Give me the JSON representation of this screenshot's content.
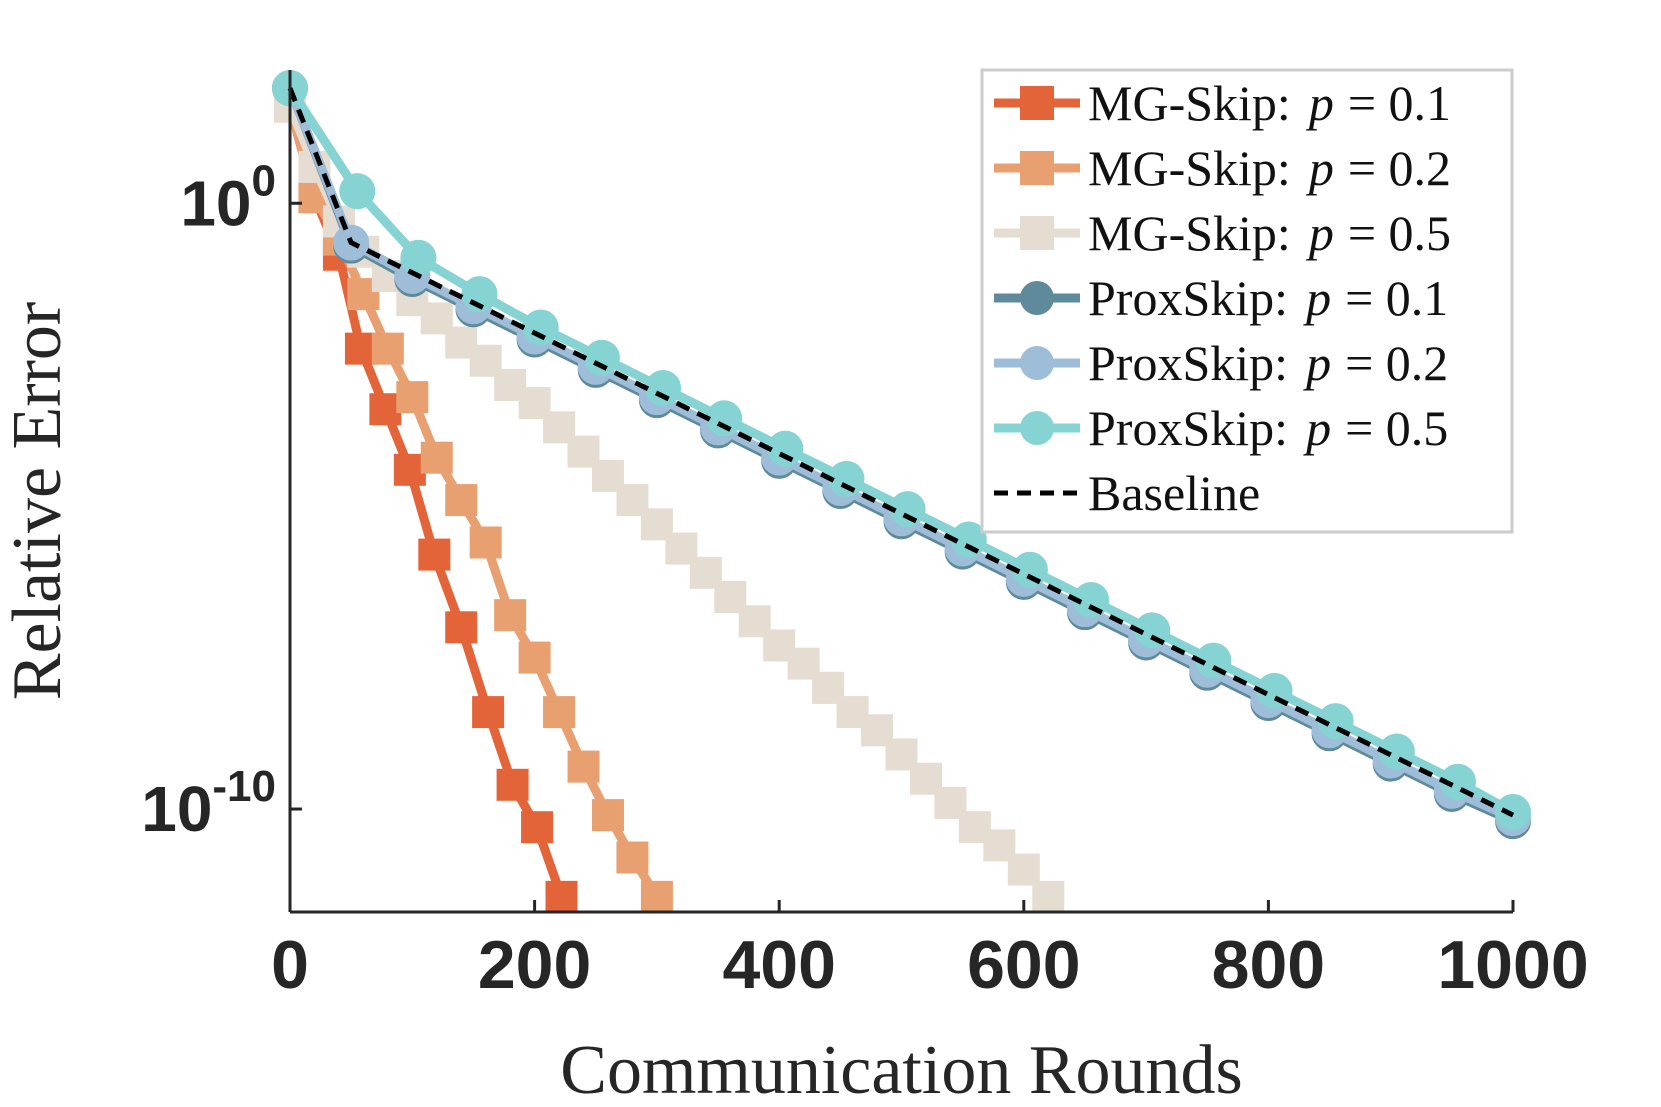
{
  "chart_data": {
    "type": "line",
    "title": "",
    "xlabel": "Communication Rounds",
    "ylabel": "Relative Error",
    "y_scale": "log10",
    "xlim": [
      0,
      1000
    ],
    "ylim_exponent": [
      -11.7,
      2.2
    ],
    "x_ticks": [
      "0",
      "200",
      "400",
      "600",
      "800",
      "1000"
    ],
    "y_ticks": [
      {
        "base": "10",
        "exp": "0",
        "value_exponent": 0
      },
      {
        "base": "10",
        "exp": "-10",
        "value_exponent": -10
      }
    ],
    "grid": false,
    "legend_position": "top-right",
    "series": [
      {
        "name": "MG-Skip:",
        "param": "p",
        "param_value": "= 0.1",
        "color": "#e4643a",
        "marker": "square",
        "x": [
          0,
          20,
          40,
          58,
          78,
          98,
          118,
          140,
          162,
          182,
          202,
          222
        ],
        "log_y": [
          1.6,
          0.1,
          -0.85,
          -2.4,
          -3.4,
          -4.4,
          -5.8,
          -7.0,
          -8.4,
          -9.6,
          -10.3,
          -11.45
        ]
      },
      {
        "name": "MG-Skip:",
        "param": "p",
        "param_value": "= 0.2",
        "color": "#e8a070",
        "marker": "square",
        "x": [
          0,
          20,
          40,
          60,
          80,
          100,
          120,
          140,
          160,
          180,
          200,
          220,
          240,
          260,
          280,
          300
        ],
        "log_y": [
          1.6,
          0.1,
          -0.6,
          -1.5,
          -2.4,
          -3.2,
          -4.2,
          -4.9,
          -5.6,
          -6.8,
          -7.5,
          -8.4,
          -9.3,
          -10.1,
          -10.8,
          -11.45
        ]
      },
      {
        "name": "MG-Skip:",
        "param": "p",
        "param_value": "= 0.5",
        "color": "#e6ddd2",
        "marker": "square",
        "x": [
          0,
          20,
          40,
          60,
          80,
          100,
          120,
          140,
          160,
          180,
          200,
          220,
          240,
          260,
          280,
          300,
          320,
          340,
          360,
          380,
          400,
          420,
          440,
          460,
          480,
          500,
          520,
          540,
          560,
          580,
          600,
          620
        ],
        "log_y": [
          1.6,
          0.6,
          -0.3,
          -0.8,
          -1.2,
          -1.6,
          -1.9,
          -2.3,
          -2.6,
          -3.0,
          -3.3,
          -3.7,
          -4.1,
          -4.5,
          -4.9,
          -5.3,
          -5.7,
          -6.1,
          -6.5,
          -6.9,
          -7.3,
          -7.6,
          -8.0,
          -8.4,
          -8.7,
          -9.1,
          -9.5,
          -9.9,
          -10.3,
          -10.6,
          -11.0,
          -11.45
        ]
      },
      {
        "name": "ProxSkip:",
        "param": "p",
        "param_value": "= 0.1",
        "color": "#5f8a9c",
        "marker": "circle",
        "x": [
          0,
          50,
          100,
          150,
          200,
          250,
          300,
          350,
          400,
          450,
          500,
          550,
          600,
          650,
          700,
          750,
          800,
          850,
          900,
          950,
          1000
        ],
        "log_y": [
          1.9,
          -0.7,
          -1.25,
          -1.75,
          -2.25,
          -2.75,
          -3.25,
          -3.75,
          -4.25,
          -4.75,
          -5.25,
          -5.75,
          -6.25,
          -6.75,
          -7.25,
          -7.75,
          -8.25,
          -8.75,
          -9.25,
          -9.75,
          -10.2
        ]
      },
      {
        "name": "ProxSkip:",
        "param": "p",
        "param_value": "= 0.2",
        "color": "#9ebdd8",
        "marker": "circle",
        "x": [
          0,
          50,
          100,
          150,
          200,
          250,
          300,
          350,
          400,
          450,
          500,
          550,
          600,
          650,
          700,
          750,
          800,
          850,
          900,
          950,
          1000
        ],
        "log_y": [
          1.9,
          -0.65,
          -1.2,
          -1.7,
          -2.2,
          -2.7,
          -3.2,
          -3.7,
          -4.2,
          -4.7,
          -5.2,
          -5.7,
          -6.2,
          -6.7,
          -7.2,
          -7.7,
          -8.2,
          -8.7,
          -9.2,
          -9.7,
          -10.15
        ]
      },
      {
        "name": "ProxSkip:",
        "param": "p",
        "param_value": "= 0.5",
        "color": "#86d3d3",
        "marker": "circle",
        "x": [
          0,
          55,
          105,
          155,
          205,
          255,
          305,
          355,
          405,
          455,
          505,
          555,
          605,
          655,
          705,
          755,
          805,
          855,
          905,
          955,
          1000
        ],
        "log_y": [
          1.9,
          0.2,
          -0.9,
          -1.5,
          -2.05,
          -2.55,
          -3.05,
          -3.55,
          -4.05,
          -4.55,
          -5.05,
          -5.55,
          -6.05,
          -6.55,
          -7.05,
          -7.55,
          -8.05,
          -8.55,
          -9.05,
          -9.55,
          -10.05
        ]
      },
      {
        "name": "Baseline",
        "param": "",
        "param_value": "",
        "color": "#000000",
        "marker": "none",
        "dash": true,
        "x": [
          0,
          50,
          1000
        ],
        "log_y": [
          1.9,
          -0.65,
          -10.1
        ]
      }
    ]
  }
}
